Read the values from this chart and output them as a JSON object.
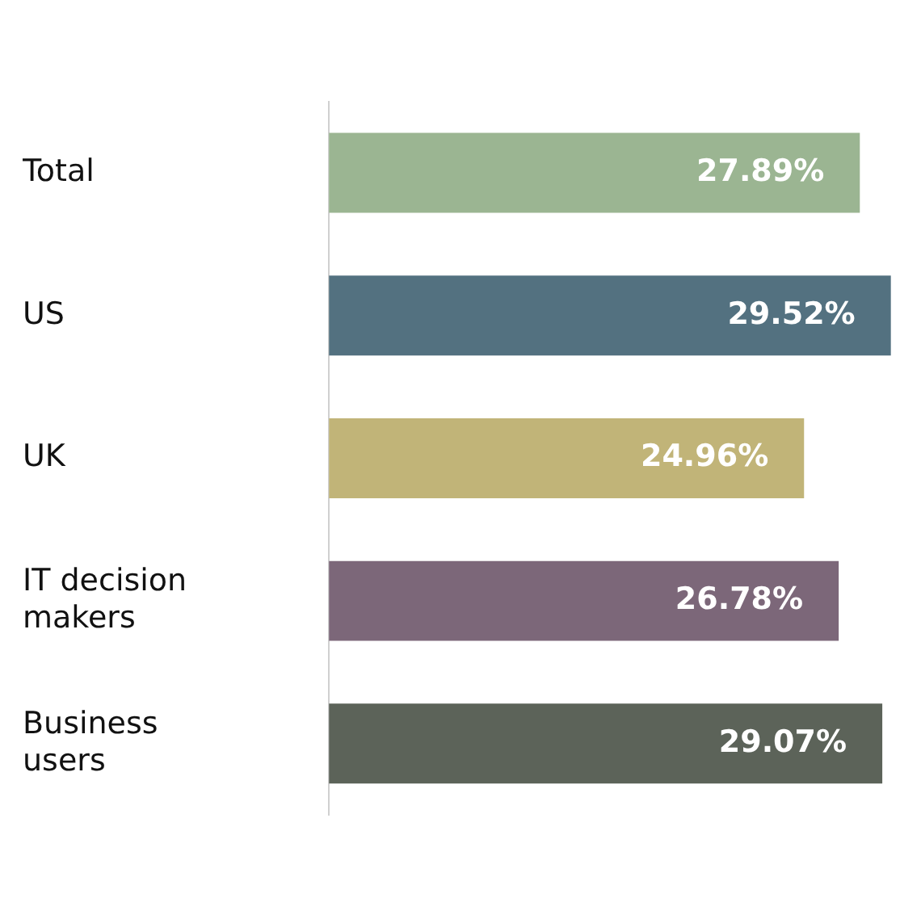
{
  "chart_data": {
    "type": "bar",
    "orientation": "horizontal",
    "categories": [
      "Total",
      "US",
      "UK",
      "IT decision makers",
      "Business users"
    ],
    "values": [
      27.89,
      29.52,
      24.96,
      26.78,
      29.07
    ],
    "colors": [
      "#9bb592",
      "#537180",
      "#c1b478",
      "#7c6779",
      "#5c6359"
    ],
    "value_labels": [
      "27.89%",
      "29.52%",
      "24.96%",
      "26.78%",
      "29.07%"
    ],
    "legend": false
  }
}
